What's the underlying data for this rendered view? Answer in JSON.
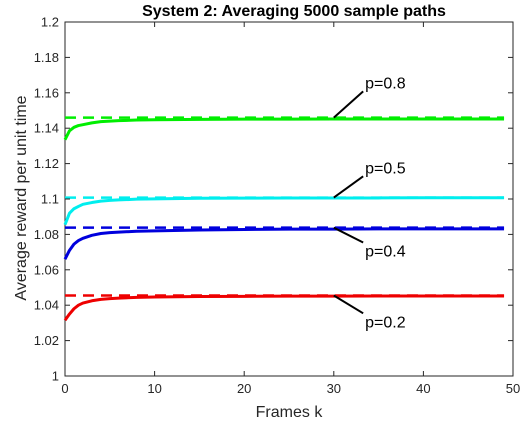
{
  "chart_data": {
    "type": "line",
    "title": "System 2: Averaging 5000 sample paths",
    "xlabel": "Frames k",
    "ylabel": "Average reward per unit time",
    "xlim": [
      0,
      50
    ],
    "ylim": [
      1,
      1.2
    ],
    "xticks": [
      0,
      10,
      20,
      30,
      40,
      50
    ],
    "yticks": [
      1,
      1.02,
      1.04,
      1.06,
      1.08,
      1.1,
      1.12,
      1.14,
      1.16,
      1.18,
      1.2
    ],
    "grid": false,
    "x": [
      0,
      0.5,
      1,
      1.5,
      2,
      3,
      4,
      5,
      6,
      8,
      10,
      15,
      20,
      25,
      30,
      35,
      40,
      45,
      49
    ],
    "series": [
      {
        "name": "p=0.8",
        "color": "#00ee00",
        "values": [
          1.1335,
          1.1385,
          1.1405,
          1.1415,
          1.142,
          1.143,
          1.1437,
          1.144,
          1.1443,
          1.1446,
          1.1448,
          1.145,
          1.1451,
          1.1451,
          1.1452,
          1.1452,
          1.1452,
          1.1452,
          1.1452
        ],
        "limit": 1.146
      },
      {
        "name": "p=0.5",
        "color": "#00eeee",
        "values": [
          1.0855,
          1.092,
          1.0945,
          1.0958,
          1.097,
          1.098,
          1.0988,
          1.0992,
          1.0995,
          1.0999,
          1.1001,
          1.1004,
          1.1005,
          1.1006,
          1.1006,
          1.1006,
          1.1007,
          1.1007,
          1.1007
        ],
        "limit": 1.1008
      },
      {
        "name": "p=0.4",
        "color": "#0000dd",
        "values": [
          1.066,
          1.071,
          1.0745,
          1.0765,
          1.0778,
          1.0795,
          1.0805,
          1.081,
          1.0813,
          1.0818,
          1.082,
          1.0825,
          1.0828,
          1.083,
          1.083,
          1.0831,
          1.0831,
          1.0831,
          1.0831
        ],
        "limit": 1.0838
      },
      {
        "name": "p=0.2",
        "color": "#ee0000",
        "values": [
          1.0315,
          1.035,
          1.038,
          1.04,
          1.0412,
          1.0425,
          1.0433,
          1.0437,
          1.044,
          1.0444,
          1.0446,
          1.0449,
          1.045,
          1.0451,
          1.0451,
          1.0452,
          1.0452,
          1.0452,
          1.0452
        ],
        "limit": 1.0455
      }
    ],
    "annotations": [
      {
        "text": "p=0.8",
        "series": "p=0.8",
        "text_x": 33.5,
        "text_y": 1.1625
      },
      {
        "text": "p=0.5",
        "series": "p=0.5",
        "text_x": 33.5,
        "text_y": 1.1145
      },
      {
        "text": "p=0.4",
        "series": "p=0.4",
        "text_x": 33.5,
        "text_y": 1.0675
      },
      {
        "text": "p=0.2",
        "series": "p=0.2",
        "text_x": 33.5,
        "text_y": 1.0275
      }
    ]
  }
}
